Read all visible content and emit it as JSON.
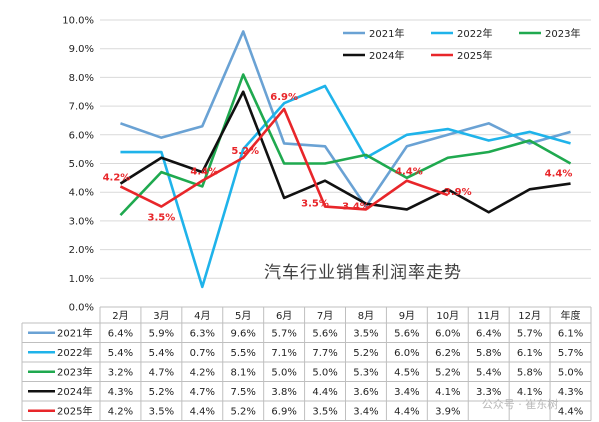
{
  "chart_data": {
    "type": "line",
    "title": "汽车行业销售利润率走势",
    "categories": [
      "2月",
      "3月",
      "4月",
      "5月",
      "6月",
      "7月",
      "8月",
      "9月",
      "10月",
      "11月",
      "12月",
      "年度"
    ],
    "yticks": [
      "0.0%",
      "1.0%",
      "2.0%",
      "3.0%",
      "4.0%",
      "5.0%",
      "6.0%",
      "7.0%",
      "8.0%",
      "9.0%",
      "10.0%"
    ],
    "ylim": [
      0,
      10
    ],
    "grid": true,
    "legend_position": "top-right",
    "series": [
      {
        "name": "2021年",
        "color": "#6aa2d4",
        "values": [
          6.4,
          5.9,
          6.3,
          9.6,
          5.7,
          5.6,
          3.5,
          5.6,
          6.0,
          6.4,
          5.7,
          6.1
        ],
        "table": [
          "6.4%",
          "5.9%",
          "6.3%",
          "9.6%",
          "5.7%",
          "5.6%",
          "3.5%",
          "5.6%",
          "6.0%",
          "6.4%",
          "5.7%",
          "6.1%"
        ]
      },
      {
        "name": "2022年",
        "color": "#1fb3ea",
        "values": [
          5.4,
          5.4,
          0.7,
          5.5,
          7.1,
          7.7,
          5.2,
          6.0,
          6.2,
          5.8,
          6.1,
          5.7
        ],
        "table": [
          "5.4%",
          "5.4%",
          "0.7%",
          "5.5%",
          "7.1%",
          "7.7%",
          "5.2%",
          "6.0%",
          "6.2%",
          "5.8%",
          "6.1%",
          "5.7%"
        ]
      },
      {
        "name": "2023年",
        "color": "#1fa94f",
        "values": [
          3.2,
          4.7,
          4.2,
          8.1,
          5.0,
          5.0,
          5.3,
          4.5,
          5.2,
          5.4,
          5.8,
          5.0
        ],
        "table": [
          "3.2%",
          "4.7%",
          "4.2%",
          "8.1%",
          "5.0%",
          "5.0%",
          "5.3%",
          "4.5%",
          "5.2%",
          "5.4%",
          "5.8%",
          "5.0%"
        ]
      },
      {
        "name": "2024年",
        "color": "#111111",
        "values": [
          4.3,
          5.2,
          4.7,
          7.5,
          3.8,
          4.4,
          3.6,
          3.4,
          4.1,
          3.3,
          4.1,
          4.3
        ],
        "table": [
          "4.3%",
          "5.2%",
          "4.7%",
          "7.5%",
          "3.8%",
          "4.4%",
          "3.6%",
          "3.4%",
          "4.1%",
          "3.3%",
          "4.1%",
          "4.3%"
        ]
      },
      {
        "name": "2025年",
        "color": "#e8262a",
        "values": [
          4.2,
          3.5,
          4.4,
          5.2,
          6.9,
          3.5,
          3.4,
          4.4,
          3.9,
          null,
          null,
          4.4
        ],
        "table": [
          "4.2%",
          "3.5%",
          "4.4%",
          "5.2%",
          "6.9%",
          "3.5%",
          "3.4%",
          "4.4%",
          "3.9%",
          "",
          "",
          "4.4%"
        ],
        "labels": [
          "4.2%",
          "3.5%",
          "4.4%",
          "5.2%",
          "6.9%",
          "3.5%",
          "3.4%",
          "4.4%",
          "3.9%",
          "",
          "",
          "4.4%"
        ]
      }
    ]
  },
  "watermark": "公众号 · 崔东树"
}
